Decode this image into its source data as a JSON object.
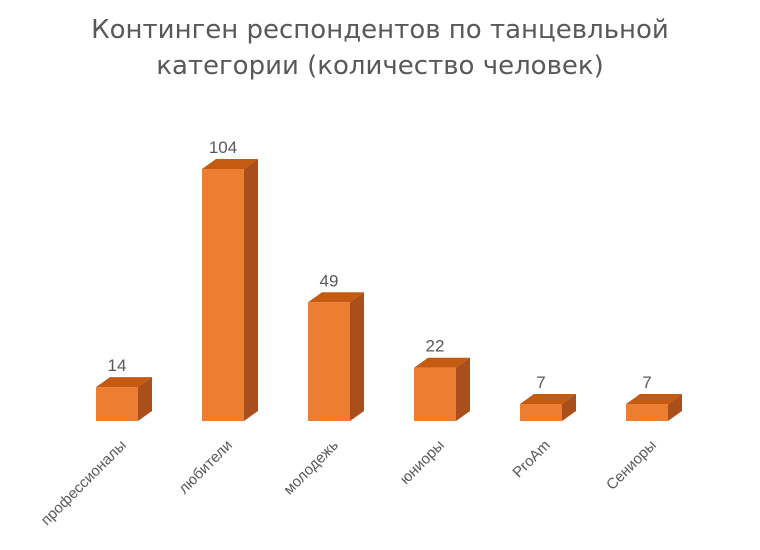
{
  "chart_data": {
    "type": "bar",
    "title_lines": [
      "Континген респондентов по танцевльной",
      "категории (количество человек)"
    ],
    "categories": [
      "профессионалы",
      "любители",
      "молодежь",
      "юниоры",
      "ProAm",
      "Сениоры"
    ],
    "values": [
      14,
      104,
      49,
      22,
      7,
      7
    ],
    "data_labels": [
      "14",
      "104",
      "49",
      "22",
      "7",
      "7"
    ],
    "ylim": [
      0,
      104
    ],
    "grid": false,
    "legend": "none",
    "bar_front_color": "#ED7D31",
    "bar_side_color": "#A84F1B",
    "bar_top_color": "#C55A11",
    "text_color": "#595959"
  }
}
